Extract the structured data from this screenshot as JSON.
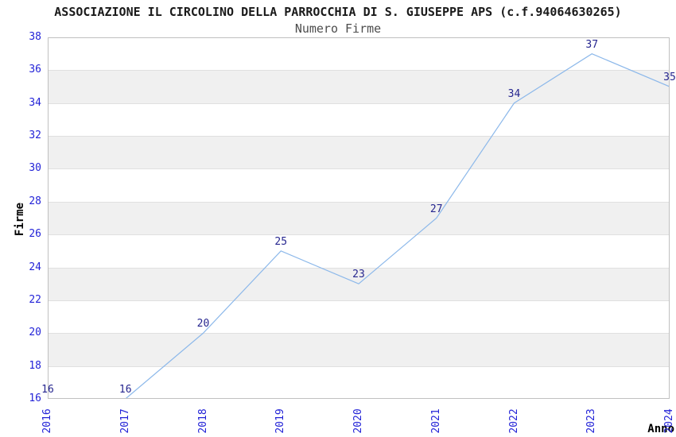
{
  "chart_data": {
    "type": "line",
    "title": "ASSOCIAZIONE IL CIRCOLINO DELLA PARROCCHIA DI S. GIUSEPPE APS (c.f.94064630265)",
    "subtitle": "Numero Firme",
    "xlabel": "Anno",
    "ylabel": "Firme",
    "x": [
      2016,
      2017,
      2018,
      2019,
      2020,
      2021,
      2022,
      2023,
      2024
    ],
    "values": [
      16,
      16,
      20,
      25,
      23,
      27,
      34,
      37,
      35
    ],
    "ylim": [
      16,
      38
    ],
    "ytick_step": 2,
    "xtick_rotation": -90,
    "grid": "alternating-horizontal-bands",
    "legend": "none",
    "data_labels_shown": true,
    "colors": {
      "line": "#8cb8ea",
      "tick_labels": "#2323d7",
      "data_labels": "#26268f",
      "band_white": "#ffffff",
      "band_gray": "#f0f0f0",
      "gridline": "#e0e0e0",
      "plot_border": "#c0c0c0",
      "title": "#1a1a1a",
      "subtitle": "#4d4d4d",
      "axis_titles": "#000000",
      "background": "#ffffff"
    }
  }
}
